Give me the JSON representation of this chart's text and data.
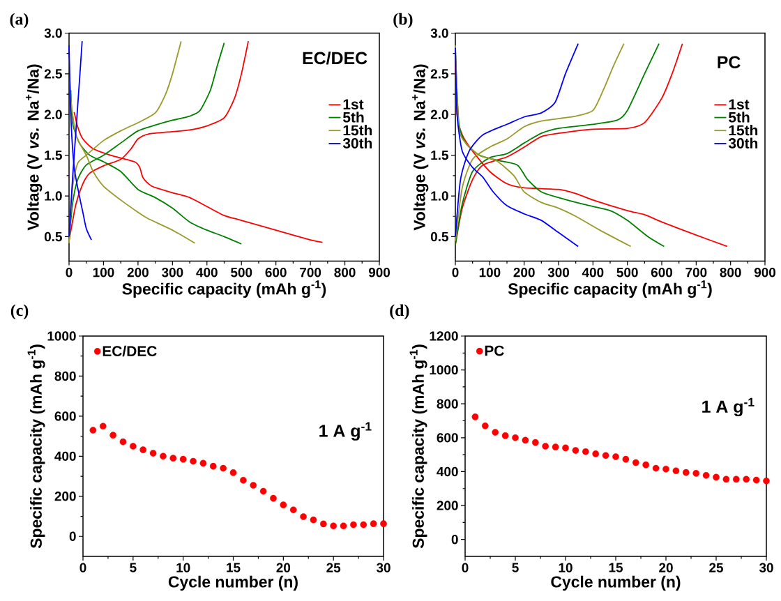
{
  "chart_data": [
    {
      "type": "line",
      "title": "(a)",
      "xlabel": "Specific capacity (mAh g$^{-1}$)",
      "ylabel": "Voltage (V *vs.* Na$^{+}$/Na)",
      "xlim": [
        0,
        900
      ],
      "ylim": [
        0.2,
        3.0
      ],
      "xticks": [
        0,
        100,
        200,
        300,
        400,
        500,
        600,
        700,
        800,
        900
      ],
      "yticks": [
        0.5,
        {
          "value": 1,
          "label": "1.0"
        },
        1.5,
        {
          "value": 2,
          "label": "2.0"
        },
        2.5,
        {
          "value": 3,
          "label": "3.0"
        }
      ],
      "legend": "right",
      "line_style": "solid",
      "marker": "none",
      "annotations": [
        "EC/DEC"
      ],
      "series": [
        {
          "name": "1st",
          "color": "#ff0000",
          "x": [
            15,
            25,
            40,
            70,
            120,
            190,
            205,
            215,
            240,
            300,
            350,
            400,
            450,
            500,
            600,
            700,
            735
          ],
          "values": [
            2.03,
            1.85,
            1.7,
            1.58,
            1.5,
            1.42,
            1.35,
            1.22,
            1.12,
            1.04,
            0.98,
            0.87,
            0.76,
            0.7,
            0.58,
            0.46,
            0.43
          ]
        },
        {
          "color": "#ff0000",
          "x": [
            0,
            20,
            40,
            60,
            100,
            150,
            180,
            200,
            230,
            300,
            350,
            400,
            450,
            480,
            500,
            520
          ],
          "values": [
            0.45,
            0.9,
            1.15,
            1.28,
            1.37,
            1.45,
            1.58,
            1.7,
            1.76,
            1.79,
            1.81,
            1.86,
            1.96,
            2.2,
            2.5,
            2.9
          ]
        },
        {
          "name": "5th",
          "color": "#008000",
          "x": [
            5,
            10,
            30,
            60,
            100,
            150,
            200,
            250,
            300,
            350,
            400,
            450,
            500
          ],
          "values": [
            2.3,
            1.9,
            1.65,
            1.5,
            1.42,
            1.3,
            1.08,
            0.98,
            0.85,
            0.68,
            0.58,
            0.5,
            0.41
          ]
        },
        {
          "color": "#008000",
          "x": [
            0,
            10,
            25,
            50,
            100,
            150,
            200,
            250,
            300,
            350,
            380,
            410,
            430,
            450
          ],
          "values": [
            0.45,
            0.9,
            1.2,
            1.38,
            1.5,
            1.65,
            1.8,
            1.87,
            1.93,
            1.98,
            2.05,
            2.3,
            2.6,
            2.88
          ]
        },
        {
          "name": "15th",
          "color": "#9a9a2a",
          "x": [
            0,
            5,
            20,
            50,
            70,
            100,
            150,
            200,
            230,
            300,
            365
          ],
          "values": [
            2.7,
            2.2,
            1.75,
            1.5,
            1.3,
            1.12,
            0.95,
            0.8,
            0.72,
            0.58,
            0.42
          ]
        },
        {
          "color": "#9a9a2a",
          "x": [
            0,
            10,
            25,
            50,
            100,
            150,
            200,
            250,
            280,
            300,
            325
          ],
          "values": [
            0.42,
            1.1,
            1.4,
            1.5,
            1.68,
            1.8,
            1.9,
            2.02,
            2.25,
            2.5,
            2.9
          ]
        },
        {
          "name": "30th",
          "color": "#0000ff",
          "x": [
            0,
            5,
            15,
            30,
            40,
            50,
            65
          ],
          "values": [
            2.85,
            2.0,
            1.35,
            1.0,
            0.8,
            0.6,
            0.46
          ]
        },
        {
          "color": "#0000ff",
          "x": [
            0,
            10,
            20,
            30,
            38
          ],
          "values": [
            0.5,
            1.2,
            1.8,
            2.4,
            2.9
          ]
        }
      ]
    },
    {
      "type": "line",
      "title": "(b)",
      "xlabel": "Specific capacity (mAh g$^{-1}$)",
      "ylabel": "Voltage (V *vs.* Na$^{+}$/Na)",
      "xlim": [
        0,
        900
      ],
      "ylim": [
        0.2,
        3.0
      ],
      "xticks": [
        0,
        100,
        200,
        300,
        400,
        500,
        600,
        700,
        800,
        900
      ],
      "yticks": [
        0.5,
        {
          "value": 1,
          "label": "1.0"
        },
        1.5,
        {
          "value": 2,
          "label": "2.0"
        },
        2.5,
        {
          "value": 3,
          "label": "3.0"
        }
      ],
      "legend": "right",
      "line_style": "solid",
      "marker": "none",
      "annotations": [
        "PC"
      ],
      "series": [
        {
          "name": "1st",
          "color": "#ff0000",
          "x": [
            0,
            5,
            20,
            50,
            100,
            150,
            200,
            300,
            350,
            400,
            500,
            550,
            600,
            700,
            790
          ],
          "values": [
            2.8,
            2.0,
            1.75,
            1.55,
            1.3,
            1.15,
            1.1,
            1.08,
            1.03,
            0.95,
            0.82,
            0.77,
            0.68,
            0.52,
            0.38
          ]
        },
        {
          "color": "#ff0000",
          "x": [
            0,
            20,
            50,
            80,
            150,
            200,
            250,
            300,
            400,
            500,
            550,
            600,
            630,
            660
          ],
          "values": [
            0.4,
            0.85,
            1.2,
            1.38,
            1.48,
            1.6,
            1.73,
            1.77,
            1.82,
            1.83,
            1.9,
            2.2,
            2.5,
            2.87
          ]
        },
        {
          "name": "5th",
          "color": "#008000",
          "x": [
            0,
            10,
            30,
            70,
            120,
            180,
            210,
            250,
            300,
            370,
            450,
            500,
            560,
            607
          ],
          "values": [
            2.8,
            1.9,
            1.65,
            1.5,
            1.44,
            1.38,
            1.2,
            1.05,
            0.98,
            0.9,
            0.82,
            0.7,
            0.5,
            0.38
          ]
        },
        {
          "color": "#008000",
          "x": [
            0,
            20,
            50,
            100,
            150,
            200,
            250,
            300,
            400,
            470,
            500,
            550,
            592
          ],
          "values": [
            0.4,
            0.9,
            1.3,
            1.47,
            1.52,
            1.65,
            1.77,
            1.83,
            1.88,
            1.93,
            2.05,
            2.5,
            2.87
          ]
        },
        {
          "name": "15th",
          "color": "#9a9a2a",
          "x": [
            0,
            10,
            30,
            70,
            120,
            170,
            200,
            250,
            300,
            350,
            420,
            510
          ],
          "values": [
            2.85,
            1.85,
            1.65,
            1.5,
            1.43,
            1.25,
            1.05,
            0.92,
            0.85,
            0.75,
            0.58,
            0.38
          ]
        },
        {
          "color": "#9a9a2a",
          "x": [
            0,
            20,
            50,
            100,
            150,
            200,
            250,
            350,
            400,
            430,
            460,
            490
          ],
          "values": [
            0.45,
            1.1,
            1.45,
            1.6,
            1.7,
            1.85,
            1.92,
            1.98,
            2.05,
            2.3,
            2.6,
            2.87
          ]
        },
        {
          "name": "30th",
          "color": "#0000ff",
          "x": [
            0,
            5,
            20,
            50,
            80,
            110,
            150,
            200,
            250,
            300,
            357
          ],
          "values": [
            2.82,
            2.0,
            1.55,
            1.35,
            1.23,
            1.05,
            0.88,
            0.78,
            0.7,
            0.55,
            0.38
          ]
        },
        {
          "color": "#0000ff",
          "x": [
            0,
            15,
            40,
            80,
            150,
            200,
            250,
            290,
            320,
            357
          ],
          "values": [
            0.5,
            1.2,
            1.55,
            1.75,
            1.88,
            1.97,
            2.02,
            2.15,
            2.5,
            2.87
          ]
        }
      ]
    },
    {
      "type": "scatter",
      "title": "(c)",
      "xlabel": "Cycle number (n)",
      "ylabel": "Specific capacity (mAh g$^{-1}$)",
      "xlim": [
        0,
        30
      ],
      "ylim": [
        -100,
        1000
      ],
      "xticks": [
        0,
        5,
        10,
        15,
        20,
        25,
        30
      ],
      "yticks": [
        0,
        200,
        400,
        600,
        800,
        1000
      ],
      "legend": "top left",
      "marker": "circle",
      "annotations": [
        "1 A g$^{-1}$"
      ],
      "series": [
        {
          "name": "EC/DEC",
          "color": "#ff0000",
          "x": [
            1,
            2,
            3,
            4,
            5,
            6,
            7,
            8,
            9,
            10,
            11,
            12,
            13,
            14,
            15,
            16,
            17,
            18,
            19,
            20,
            21,
            22,
            23,
            24,
            25,
            26,
            27,
            28,
            29,
            30
          ],
          "values": [
            530,
            550,
            505,
            472,
            450,
            432,
            415,
            400,
            390,
            385,
            375,
            365,
            350,
            340,
            318,
            280,
            255,
            225,
            190,
            157,
            132,
            98,
            82,
            62,
            52,
            52,
            58,
            58,
            63,
            63
          ]
        }
      ]
    },
    {
      "type": "scatter",
      "title": "(d)",
      "xlabel": "Cycle number (n)",
      "ylabel": "Specific capacity (mAh g$^{-1}$)",
      "xlim": [
        0,
        30
      ],
      "ylim": [
        -100,
        1200
      ],
      "xticks": [
        0,
        5,
        10,
        15,
        20,
        25,
        30
      ],
      "yticks": [
        0,
        200,
        400,
        600,
        800,
        1000,
        1200
      ],
      "legend": "top left",
      "marker": "circle",
      "annotations": [
        "1 A g$^{-1}$"
      ],
      "series": [
        {
          "name": "PC",
          "color": "#ff0000",
          "x": [
            1,
            2,
            3,
            4,
            5,
            6,
            7,
            8,
            9,
            10,
            11,
            12,
            13,
            14,
            15,
            16,
            17,
            18,
            19,
            20,
            21,
            22,
            23,
            24,
            25,
            26,
            27,
            28,
            29,
            30
          ],
          "values": [
            723,
            670,
            632,
            612,
            600,
            585,
            572,
            550,
            545,
            540,
            525,
            518,
            505,
            495,
            488,
            473,
            453,
            440,
            420,
            415,
            405,
            395,
            390,
            378,
            367,
            355,
            355,
            355,
            350,
            345
          ]
        }
      ]
    }
  ]
}
